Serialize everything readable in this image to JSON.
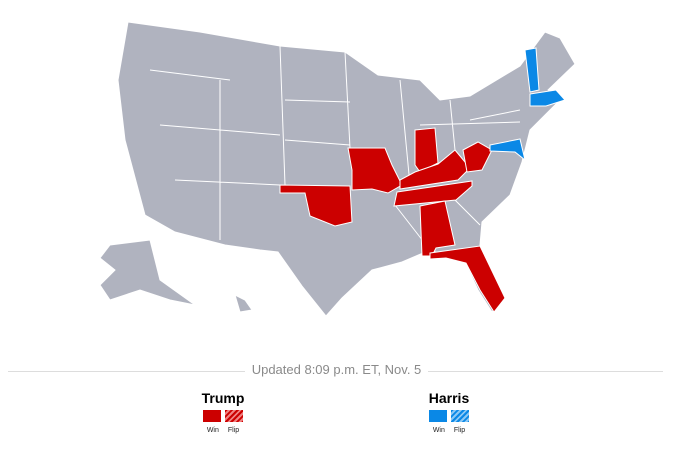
{
  "colors": {
    "trump": "#cc0000",
    "harris": "#0a88e6",
    "nodata": "#b0b3bf"
  },
  "map": {
    "trump_states": [
      "Missouri",
      "Oklahoma",
      "Indiana",
      "Kentucky",
      "Tennessee",
      "West Virginia",
      "Alabama",
      "Florida"
    ],
    "harris_states": [
      "Vermont",
      "Massachusetts",
      "Maryland"
    ]
  },
  "updated": "Updated 8:09 p.m. ET, Nov. 5",
  "legend": [
    {
      "name": "Trump",
      "win": "Win",
      "flip": "Flip"
    },
    {
      "name": "Harris",
      "win": "Win",
      "flip": "Flip"
    }
  ]
}
